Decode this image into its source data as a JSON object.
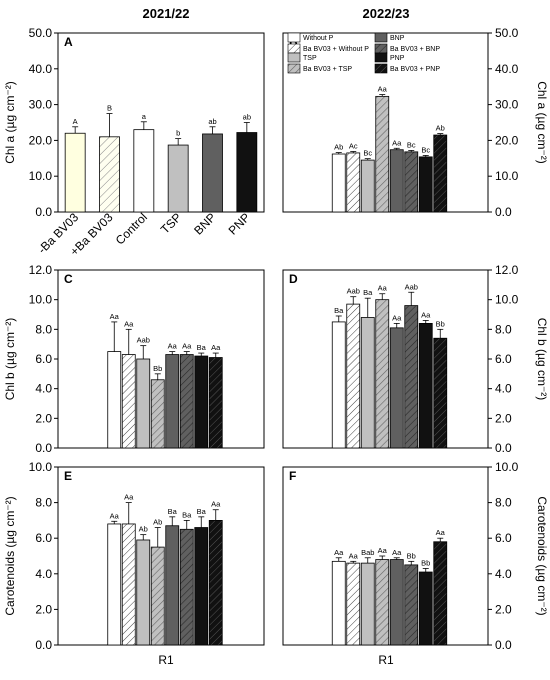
{
  "column_titles": [
    "2021/22",
    "2022/23"
  ],
  "x_label": "R1",
  "legend": [
    {
      "label": "Without P",
      "fill": "white"
    },
    {
      "label": "Ba BV03 + Without P",
      "fill": "hatch-white"
    },
    {
      "label": "TSP",
      "fill": "lightgray"
    },
    {
      "label": "Ba BV03 + TSP",
      "fill": "hatch-gray"
    },
    {
      "label": "BNP",
      "fill": "darkgray"
    },
    {
      "label": "Ba BV03 + BNP",
      "fill": "hatch-dark"
    },
    {
      "label": "PNP",
      "fill": "black"
    },
    {
      "label": "Ba BV03 + PNP",
      "fill": "hatch-black"
    }
  ],
  "colors": {
    "white": "#ffffff",
    "lightgray": "#c0c0c0",
    "darkgray": "#606060",
    "black": "#111111",
    "panelA_bar1": "#ffffe0",
    "panelA_bar2": "#fffff0"
  },
  "chart_data": [
    {
      "panel": "A",
      "type": "bar",
      "ylabel": "Chl a (µg cm⁻²)",
      "ylim": [
        0,
        50
      ],
      "yticks": [
        "0.0",
        "10.0",
        "20.0",
        "30.0",
        "40.0",
        "50.0"
      ],
      "axis_side": "left",
      "categories": [
        "-Ba BV03",
        "+Ba BV03",
        "Control",
        "TSP",
        "BNP",
        "PNP"
      ],
      "values": [
        22.0,
        21.0,
        23.0,
        18.7,
        21.8,
        22.2
      ],
      "errors": [
        1.8,
        6.5,
        2.2,
        1.8,
        2.0,
        2.8
      ],
      "letters": [
        "A",
        "B",
        "a",
        "b",
        "ab",
        "ab"
      ]
    },
    {
      "panel": "B",
      "type": "bar",
      "ylabel": "Chl a (µg cm⁻²)",
      "ylim": [
        0,
        50
      ],
      "yticks": [
        "0.0",
        "10.0",
        "20.0",
        "30.0",
        "40.0",
        "50.0"
      ],
      "axis_side": "right",
      "categories": [
        "Without P",
        "Ba BV03 + Without P",
        "TSP",
        "Ba BV03 + TSP",
        "BNP",
        "Ba BV03 + BNP",
        "PNP",
        "Ba BV03 + PNP"
      ],
      "values": [
        16.2,
        16.5,
        14.5,
        32.3,
        17.4,
        16.8,
        15.4,
        21.5
      ],
      "errors": [
        0.4,
        0.4,
        0.4,
        0.5,
        0.4,
        0.4,
        0.4,
        0.4
      ],
      "letters": [
        "Ab",
        "Ac",
        "Bc",
        "Aa",
        "Aa",
        "Bc",
        "Bc",
        "Ab"
      ]
    },
    {
      "panel": "C",
      "type": "bar",
      "ylabel": "Chl b (µg cm⁻²)",
      "ylim": [
        0,
        12
      ],
      "yticks": [
        "0.0",
        "2.0",
        "4.0",
        "6.0",
        "8.0",
        "10.0",
        "12.0"
      ],
      "axis_side": "left",
      "categories": [
        "Without P",
        "Ba BV03 + Without P",
        "TSP",
        "Ba BV03 + TSP",
        "BNP",
        "Ba BV03 + BNP",
        "PNP",
        "Ba BV03 + PNP"
      ],
      "values": [
        6.5,
        6.3,
        6.0,
        4.6,
        6.3,
        6.3,
        6.2,
        6.1
      ],
      "errors": [
        2.0,
        1.7,
        0.9,
        0.4,
        0.2,
        0.2,
        0.2,
        0.3
      ],
      "letters": [
        "Aa",
        "Aa",
        "Aab",
        "Bb",
        "Aa",
        "Aa",
        "Ba",
        "Aa"
      ]
    },
    {
      "panel": "D",
      "type": "bar",
      "ylabel": "Chl b (µg cm⁻²)",
      "ylim": [
        0,
        12
      ],
      "yticks": [
        "0.0",
        "2.0",
        "4.0",
        "6.0",
        "8.0",
        "10.0",
        "12.0"
      ],
      "axis_side": "right",
      "categories": [
        "Without P",
        "Ba BV03 + Without P",
        "TSP",
        "Ba BV03 + TSP",
        "BNP",
        "Ba BV03 + BNP",
        "PNP",
        "Ba BV03 + PNP"
      ],
      "values": [
        8.5,
        9.7,
        8.8,
        10.0,
        8.1,
        9.6,
        8.4,
        7.4
      ],
      "errors": [
        0.4,
        0.5,
        1.3,
        0.4,
        0.3,
        0.9,
        0.2,
        0.6
      ],
      "letters": [
        "Ba",
        "Aab",
        "Ba",
        "Aa",
        "Aa",
        "Aab",
        "Aa",
        "Bb"
      ]
    },
    {
      "panel": "E",
      "type": "bar",
      "ylabel": "Carotenoids (µg cm⁻²)",
      "ylim": [
        0,
        10
      ],
      "yticks": [
        "0.0",
        "2.0",
        "4.0",
        "6.0",
        "8.0",
        "10.0"
      ],
      "axis_side": "left",
      "categories": [
        "Without P",
        "Ba BV03 + Without P",
        "TSP",
        "Ba BV03 + TSP",
        "BNP",
        "Ba BV03 + BNP",
        "PNP",
        "Ba BV03 + PNP"
      ],
      "values": [
        6.8,
        6.8,
        5.9,
        5.5,
        6.7,
        6.5,
        6.6,
        7.0
      ],
      "errors": [
        0.15,
        1.2,
        0.3,
        1.1,
        0.5,
        0.5,
        0.6,
        0.6
      ],
      "letters": [
        "Aa",
        "Aa",
        "Ab",
        "Ab",
        "Ba",
        "Ba",
        "Ba",
        "Aa"
      ]
    },
    {
      "panel": "F",
      "type": "bar",
      "ylabel": "Carotenoids (µg cm⁻²)",
      "ylim": [
        0,
        10
      ],
      "yticks": [
        "0.0",
        "2.0",
        "4.0",
        "6.0",
        "8.0",
        "10.0"
      ],
      "axis_side": "right",
      "categories": [
        "Without P",
        "Ba BV03 + Without P",
        "TSP",
        "Ba BV03 + TSP",
        "BNP",
        "Ba BV03 + BNP",
        "PNP",
        "Ba BV03 + PNP"
      ],
      "values": [
        4.7,
        4.6,
        4.6,
        4.8,
        4.8,
        4.5,
        4.1,
        5.8
      ],
      "errors": [
        0.2,
        0.1,
        0.3,
        0.2,
        0.1,
        0.2,
        0.2,
        0.2
      ],
      "letters": [
        "Aa",
        "Aa",
        "Bab",
        "Aa",
        "Aa",
        "Bb",
        "Bb",
        "Aa"
      ]
    }
  ]
}
